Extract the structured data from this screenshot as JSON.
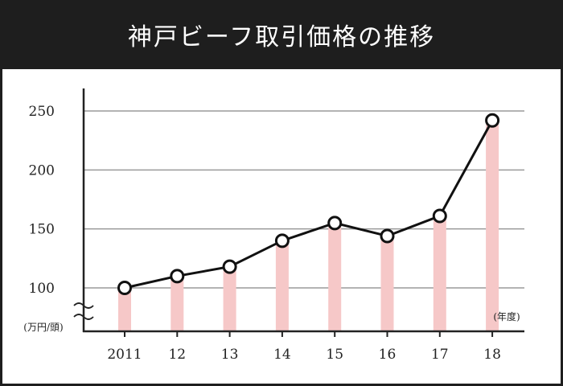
{
  "title": "神戸ビーフ取引価格の推移",
  "chart_data": {
    "type": "line",
    "title": "神戸ビーフ取引価格の推移",
    "x": [
      "2011",
      "12",
      "13",
      "14",
      "15",
      "16",
      "17",
      "18"
    ],
    "values": [
      100,
      110,
      118,
      140,
      155,
      144,
      161,
      242
    ],
    "y_unit_label": "(万円/頭)",
    "x_unit_label": "(年度)",
    "yticks": [
      100,
      150,
      200,
      250
    ],
    "ylim": [
      70,
      260
    ],
    "axis_break": true,
    "grid": true,
    "colors": {
      "line": "#111111",
      "marker_fill": "#ffffff",
      "bar": "#f6c8c8",
      "grid": "#9a9a9a",
      "background": "#1e1e1e",
      "title_text": "#ffffff"
    }
  }
}
